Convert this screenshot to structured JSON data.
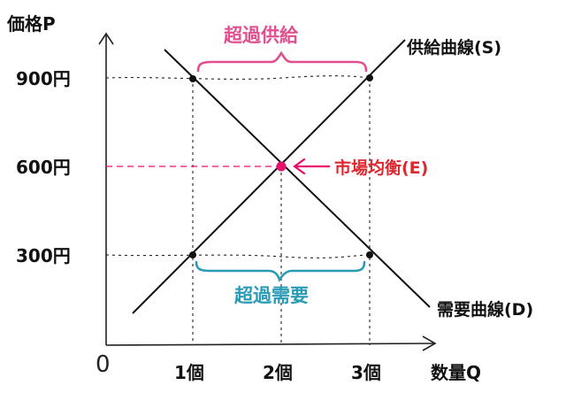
{
  "axes": {
    "y_label": "価格P",
    "x_label": "数量Q",
    "origin": "0",
    "y_ticks": [
      "900円",
      "600円",
      "300円"
    ],
    "x_ticks": [
      "1個",
      "2個",
      "3個"
    ]
  },
  "curves": {
    "supply_label": "供給曲線(S)",
    "demand_label": "需要曲線(D)"
  },
  "annotations": {
    "excess_supply": "超過供給",
    "excess_demand": "超過需要",
    "equilibrium": "市場均衡(E)"
  },
  "colors": {
    "excess_supply": "#e0508f",
    "excess_demand": "#2a9bb5",
    "equilibrium": "#e0262f",
    "equilibrium_point": "#e8106a"
  }
}
